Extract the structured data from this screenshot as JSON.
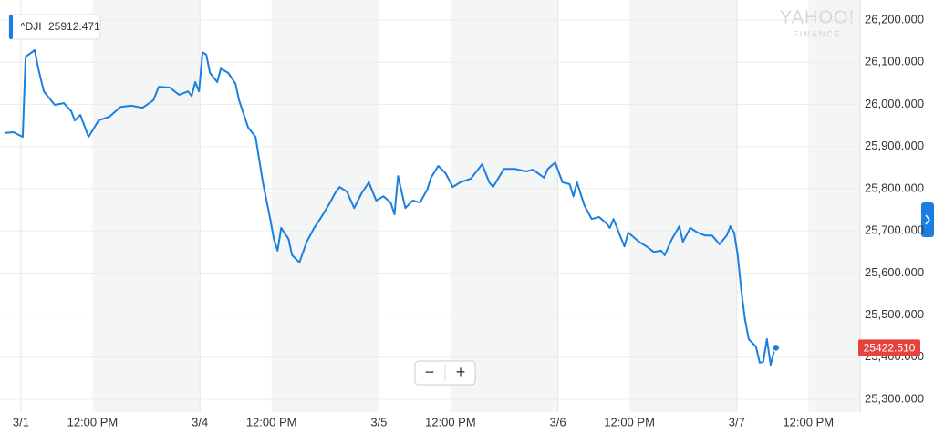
{
  "chart_data": {
    "type": "line",
    "x": [
      -0.092,
      -0.041,
      0.01,
      0.026,
      0.077,
      0.097,
      0.128,
      0.189,
      0.24,
      0.281,
      0.301,
      0.332,
      0.378,
      0.434,
      0.495,
      0.556,
      0.617,
      0.679,
      0.74,
      0.77,
      0.832,
      0.883,
      0.934,
      0.954,
      0.974,
      0.995,
      1.015,
      1.036,
      1.056,
      1.097,
      1.117,
      1.158,
      1.199,
      1.219,
      1.27,
      1.311,
      1.352,
      1.393,
      1.413,
      1.434,
      1.454,
      1.495,
      1.515,
      1.556,
      1.597,
      1.638,
      1.679,
      1.719,
      1.76,
      1.781,
      1.821,
      1.862,
      1.903,
      1.944,
      1.985,
      2.026,
      2.066,
      2.087,
      2.107,
      2.148,
      2.189,
      2.23,
      2.27,
      2.291,
      2.332,
      2.372,
      2.413,
      2.454,
      2.515,
      2.577,
      2.617,
      2.638,
      2.699,
      2.76,
      2.821,
      2.862,
      2.923,
      2.944,
      2.985,
      3.026,
      3.066,
      3.087,
      3.107,
      3.148,
      3.189,
      3.23,
      3.27,
      3.291,
      3.311,
      3.372,
      3.393,
      3.454,
      3.495,
      3.536,
      3.577,
      3.597,
      3.638,
      3.679,
      3.699,
      3.74,
      3.781,
      3.821,
      3.862,
      3.903,
      3.944,
      3.964,
      3.985,
      4.005,
      4.026,
      4.046,
      4.066,
      4.107,
      4.128,
      4.148,
      4.168,
      4.189,
      4.209,
      4.219
    ],
    "series": [
      {
        "name": "^DJI",
        "color": "#1a7fe0",
        "hover_value": 25912.471,
        "values": [
          25932,
          25934,
          25923,
          26113,
          26129,
          26085,
          26031,
          25999,
          26003,
          25984,
          25962,
          25975,
          25923,
          25962,
          25971,
          25994,
          25997,
          25992,
          26010,
          26042,
          26040,
          26023,
          26031,
          26020,
          26053,
          26031,
          26124,
          26118,
          26075,
          26053,
          26085,
          26075,
          26049,
          26010,
          25945,
          25923,
          25815,
          25728,
          25681,
          25653,
          25707,
          25681,
          25642,
          25625,
          25674,
          25707,
          25733,
          25761,
          25793,
          25804,
          25793,
          25754,
          25789,
          25815,
          25772,
          25782,
          25767,
          25739,
          25830,
          25754,
          25772,
          25767,
          25798,
          25826,
          25854,
          25837,
          25804,
          25815,
          25824,
          25858,
          25815,
          25804,
          25847,
          25847,
          25841,
          25845,
          25826,
          25847,
          25862,
          25815,
          25811,
          25782,
          25815,
          25761,
          25728,
          25733,
          25718,
          25707,
          25728,
          25663,
          25696,
          25674,
          25663,
          25650,
          25653,
          25642,
          25681,
          25711,
          25674,
          25707,
          25696,
          25689,
          25689,
          25668,
          25689,
          25711,
          25696,
          25642,
          25555,
          25490,
          25443,
          25425,
          25387,
          25389,
          25443,
          25382,
          25415,
          25422.51
        ]
      }
    ],
    "xlim": [
      -0.117,
      4.689
    ],
    "xticks": [
      {
        "value": 0,
        "label": "3/1"
      },
      {
        "value": 0.4,
        "label": "12:00 PM"
      },
      {
        "value": 1,
        "label": "3/4"
      },
      {
        "value": 1.4,
        "label": "12:00 PM"
      },
      {
        "value": 2,
        "label": "3/5"
      },
      {
        "value": 2.4,
        "label": "12:00 PM"
      },
      {
        "value": 3,
        "label": "3/6"
      },
      {
        "value": 3.4,
        "label": "12:00 PM"
      },
      {
        "value": 4,
        "label": "3/7"
      },
      {
        "value": 4.4,
        "label": "12:00 PM"
      }
    ],
    "ylim": [
      25274,
      26237
    ],
    "yticks": [
      {
        "value": 26200,
        "label": "26,200.000"
      },
      {
        "value": 26100,
        "label": "26,100.000"
      },
      {
        "value": 26000,
        "label": "26,000.000"
      },
      {
        "value": 25900,
        "label": "25,900.000"
      },
      {
        "value": 25800,
        "label": "25,800.000"
      },
      {
        "value": 25700,
        "label": "25,700.000"
      },
      {
        "value": 25600,
        "label": "25,600.000"
      },
      {
        "value": 25500,
        "label": "25,500.000"
      },
      {
        "value": 25400,
        "label": "25,400.000"
      },
      {
        "value": 25300,
        "label": "25,300.000"
      }
    ],
    "grid": true,
    "last_price": {
      "value": 25422.51,
      "label": "25422.510",
      "color": "#e8423f"
    },
    "watermark": {
      "brand": "YAHOO!",
      "sub": "FINANCE"
    },
    "controls": {
      "zoom_out": "−",
      "zoom_in": "+"
    }
  }
}
